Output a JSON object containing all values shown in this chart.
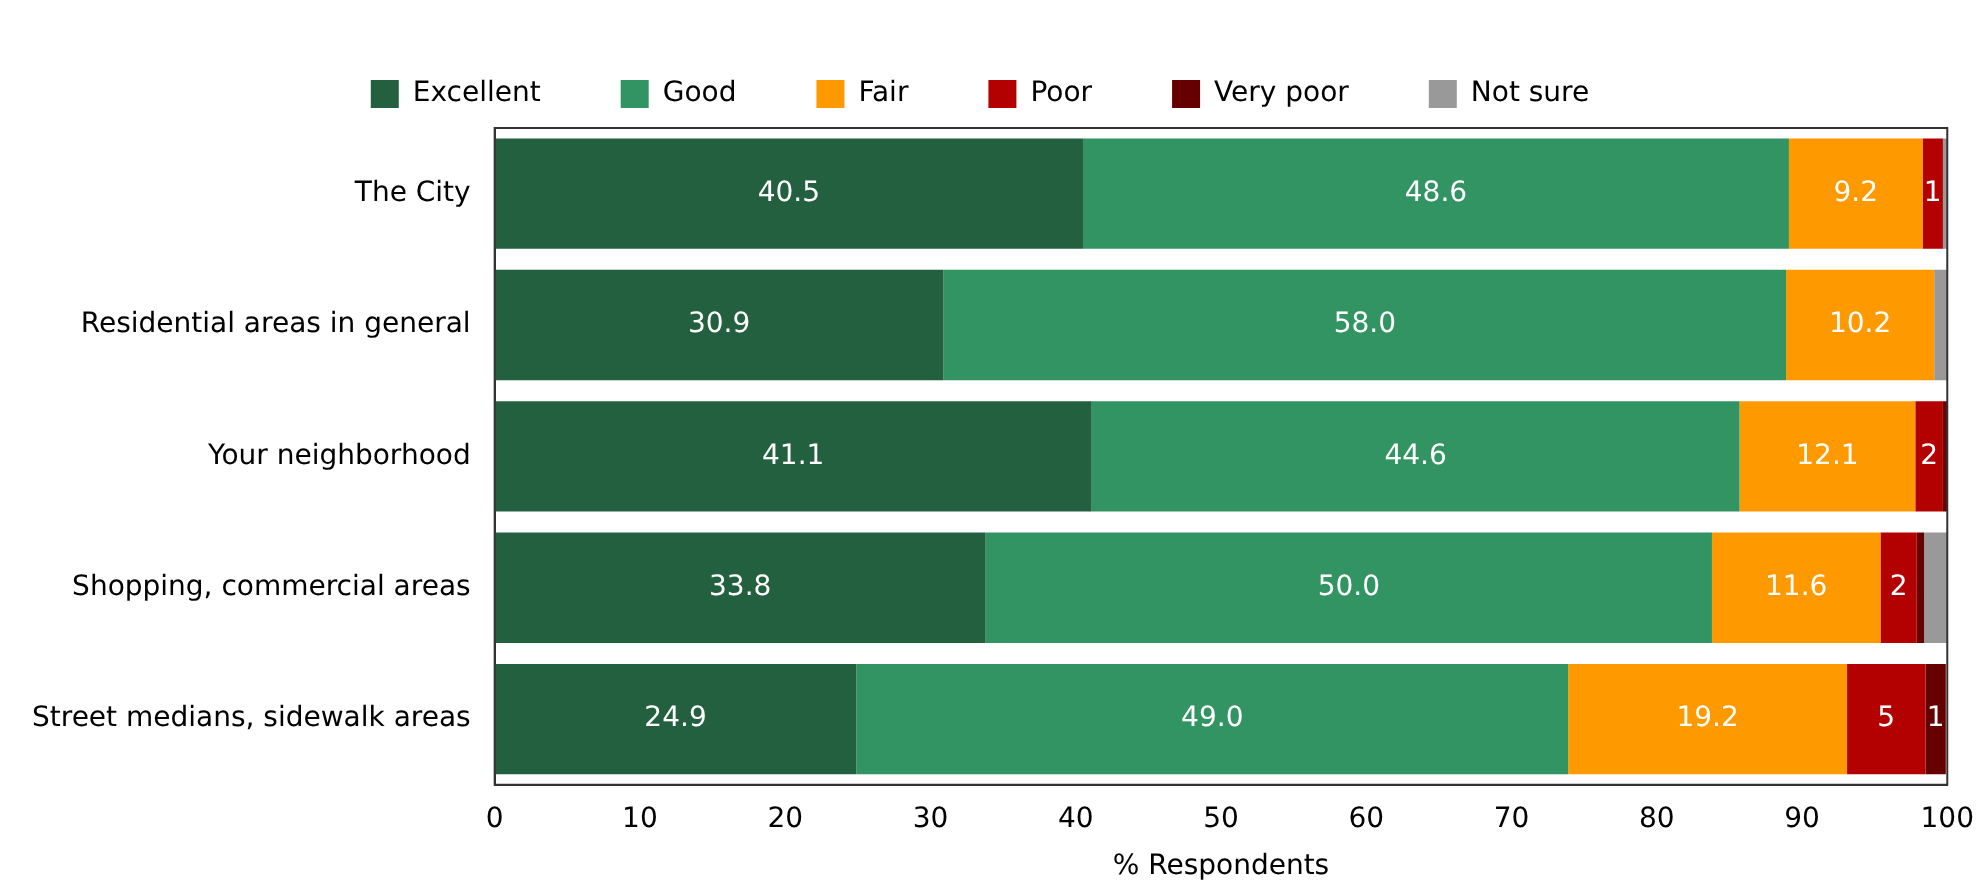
{
  "chart_data": {
    "type": "bar",
    "orientation": "horizontal",
    "stacked": true,
    "xlabel": "% Respondents",
    "categories": [
      "The City",
      "Residential areas in general",
      "Your neighborhood",
      "Shopping, commercial areas",
      "Street medians, sidewalk areas"
    ],
    "xlim": [
      0,
      100
    ],
    "xticks": [
      0,
      10,
      20,
      30,
      40,
      50,
      60,
      70,
      80,
      90,
      100
    ],
    "legend": "top",
    "grid": false,
    "series": [
      {
        "name": "Excellent",
        "color": "#22603f",
        "values": [
          40.5,
          30.9,
          41.1,
          33.8,
          24.9
        ],
        "value_labels": [
          "40.5",
          "30.9",
          "41.1",
          "33.8",
          "24.9"
        ]
      },
      {
        "name": "Good",
        "color": "#339463",
        "values": [
          48.6,
          58.0,
          44.6,
          50.0,
          49.0
        ],
        "value_labels": [
          "48.6",
          "58.0",
          "44.6",
          "50.0",
          "49.0"
        ]
      },
      {
        "name": "Fair",
        "color": "#ff9900",
        "values": [
          9.2,
          10.2,
          12.1,
          11.6,
          19.2
        ],
        "value_labels": [
          "9.2",
          "10.2",
          "12.1",
          "11.6",
          "19.2"
        ]
      },
      {
        "name": "Poor",
        "color": "#b30000",
        "values": [
          1.4,
          0,
          1.9,
          2.5,
          5.4
        ],
        "value_labels": [
          "1",
          null,
          "2",
          "2",
          "5"
        ]
      },
      {
        "name": "Very poor",
        "color": "#660000",
        "values": [
          0,
          0,
          0.3,
          0.5,
          1.4
        ],
        "value_labels": [
          null,
          null,
          null,
          null,
          "1"
        ]
      },
      {
        "name": "Not sure",
        "color": "#999999",
        "values": [
          0.3,
          0.9,
          0,
          1.6,
          0
        ],
        "value_labels": [
          null,
          null,
          null,
          null,
          null
        ]
      }
    ]
  }
}
